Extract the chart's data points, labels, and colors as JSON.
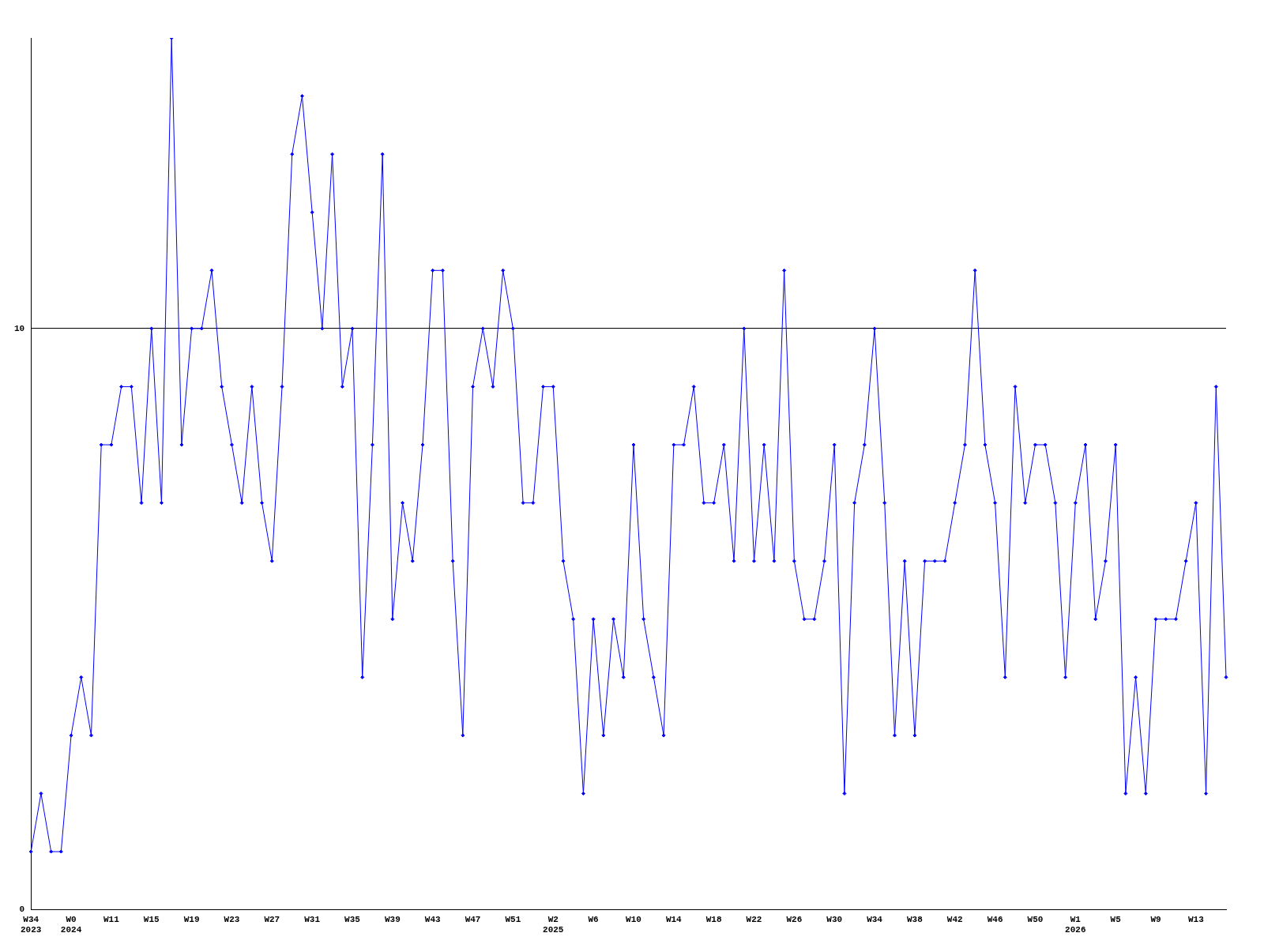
{
  "chart_data": {
    "type": "line",
    "categories": [
      "W34\n2023",
      null,
      null,
      null,
      "W0\n2024",
      null,
      null,
      null,
      "W11",
      null,
      null,
      null,
      "W15",
      null,
      null,
      null,
      "W19",
      null,
      null,
      null,
      "W23",
      null,
      null,
      null,
      "W27",
      null,
      null,
      null,
      "W31",
      null,
      null,
      null,
      "W35",
      null,
      null,
      null,
      "W39",
      null,
      null,
      null,
      "W43",
      null,
      null,
      null,
      "W47",
      null,
      null,
      null,
      "W51",
      null,
      null,
      null,
      "W2\n2025",
      null,
      null,
      null,
      "W6",
      null,
      null,
      null,
      "W10",
      null,
      null,
      null,
      "W14",
      null,
      null,
      null,
      "W18",
      null,
      null,
      null,
      "W22",
      null,
      null,
      null,
      "W26",
      null,
      null,
      null,
      "W30",
      null,
      null,
      null,
      "W34",
      null,
      null,
      null,
      "W38",
      null,
      null,
      null,
      "W42",
      null,
      null,
      null,
      "W46",
      null,
      null,
      null,
      "W50",
      null,
      null,
      null,
      "W1\n2026",
      null,
      null,
      null,
      "W5",
      null,
      null,
      null,
      "W9",
      null,
      null,
      null,
      "W13",
      null,
      null,
      null
    ],
    "series": [
      {
        "color": "#0000ff",
        "values": [
          1,
          2,
          1,
          1,
          3,
          4,
          3,
          8,
          8,
          9,
          9,
          7,
          10,
          7,
          15,
          8,
          10,
          10,
          11,
          9,
          8,
          7,
          9,
          7,
          6,
          9,
          13,
          14,
          12,
          10,
          13,
          9,
          10,
          4,
          8,
          13,
          5,
          7,
          6,
          8,
          11,
          11,
          6,
          3,
          9,
          10,
          9,
          11,
          10,
          7,
          7,
          9,
          9,
          6,
          5,
          2,
          5,
          3,
          5,
          4,
          8,
          5,
          4,
          3,
          8,
          8,
          9,
          7,
          7,
          8,
          6,
          10,
          6,
          8,
          6,
          11,
          6,
          5,
          5,
          6,
          8,
          2,
          7,
          8,
          10,
          7,
          3,
          6,
          3,
          6,
          6,
          6,
          7,
          8,
          11,
          8,
          7,
          4,
          9,
          7,
          8,
          8,
          7,
          4,
          7,
          8,
          5,
          6,
          8,
          2,
          4,
          2,
          5,
          5,
          5,
          6,
          7,
          2,
          9,
          4
        ]
      }
    ],
    "ylim": [
      0,
      15
    ],
    "yticks": [
      0,
      10
    ],
    "grid": "y",
    "marker": "diamond"
  }
}
